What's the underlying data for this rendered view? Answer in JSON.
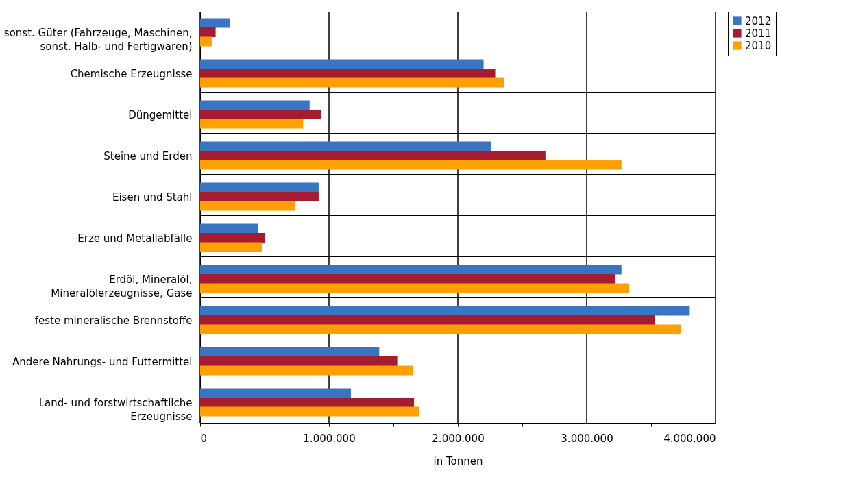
{
  "chart_data": {
    "type": "bar",
    "orientation": "horizontal",
    "xlabel": "in Tonnen",
    "categories": [
      "sonst. Güter (Fahrzeuge, Maschinen, sonst. Halb- und Fertigwaren)",
      "Chemische Erzeugnisse",
      "Düngemittel",
      "Steine und Erden",
      "Eisen und  Stahl",
      "Erze und Metallabfälle",
      "Erdöl, Mineralöl, Mineralölerzeugnisse, Gase",
      "feste mineralische Brennstoffe",
      "Andere Nahrungs- und Futtermittel",
      "Land- und forstwirtschaftliche Erzeugnisse"
    ],
    "series": [
      {
        "name": "2012",
        "color": "#3a75c4",
        "values": [
          230000,
          2200000,
          850000,
          2260000,
          920000,
          450000,
          3270000,
          3800000,
          1390000,
          1170000
        ]
      },
      {
        "name": "2011",
        "color": "#a51c30",
        "values": [
          120000,
          2290000,
          940000,
          2680000,
          920000,
          500000,
          3220000,
          3530000,
          1530000,
          1660000
        ]
      },
      {
        "name": "2010",
        "color": "#ffa000",
        "values": [
          90000,
          2360000,
          800000,
          3270000,
          740000,
          480000,
          3330000,
          3730000,
          1650000,
          1700000
        ]
      }
    ],
    "xlim": [
      0,
      4000000
    ],
    "xticks": [
      0,
      {
        "value": 500000,
        "label": null
      },
      {
        "value": 1000000,
        "label": "1.000.000"
      },
      {
        "value": 1500000,
        "label": null
      },
      {
        "value": 2000000,
        "label": "2.000.000"
      },
      {
        "value": 2500000,
        "label": null
      },
      {
        "value": 3000000,
        "label": "3.000.000"
      },
      {
        "value": 3500000,
        "label": null
      },
      {
        "value": 4000000,
        "label": "4.000.000"
      }
    ],
    "grid": true,
    "legend": "right"
  }
}
